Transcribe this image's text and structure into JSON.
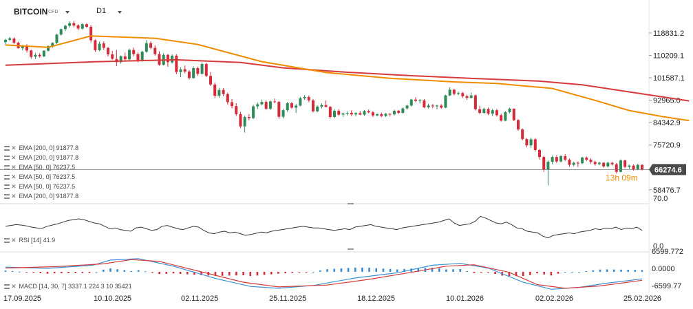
{
  "header": {
    "symbol": "BITCOIN",
    "symbol_type": "CFD",
    "timeframe": "D1"
  },
  "legends": {
    "main": [
      "EMA [200, 0] 91877.8",
      "EMA [200, 0] 91877.8",
      "EMA [50, 0] 76237.5",
      "EMA [50, 0] 76237.5",
      "EMA [50, 0] 76237.5",
      "EMA [200, 0] 91877.8"
    ],
    "rsi": "RSI [14] 41.9",
    "macd": "MACD [14, 30, 7] 3337.1 224 3 10 35421"
  },
  "colors": {
    "up": "#2e8b57",
    "down": "#d42a3a",
    "ema50": "#f08c00",
    "ema200": "#d63a3a",
    "rsi": "#333333",
    "macd": "#3a8fd4",
    "signal": "#d63a3a"
  },
  "countdown": "13h 09m",
  "chart_data": {
    "type": "candlestick",
    "price_axis": {
      "ticks": [
        118831.2,
        110209.1,
        101587.1,
        92965.0,
        84342.9,
        75720.9,
        58476.7
      ],
      "current_price": "66274.6",
      "ylim": [
        54200,
        124100
      ]
    },
    "x_axis": {
      "labels": [
        "17.09.2025",
        "10.10.2025",
        "02.11.2025",
        "25.11.2025",
        "18.12.2025",
        "10.01.2026",
        "02.02.2026",
        "25.02.2026"
      ]
    },
    "candles": [
      [
        115300,
        116600,
        114200,
        116200
      ],
      [
        116200,
        117300,
        115600,
        116800
      ],
      [
        116700,
        117200,
        114500,
        115100
      ],
      [
        115100,
        115500,
        112800,
        113000
      ],
      [
        113000,
        114200,
        112100,
        113800
      ],
      [
        113900,
        114500,
        111300,
        112100
      ],
      [
        112100,
        112400,
        108900,
        109600
      ],
      [
        109700,
        111200,
        108800,
        110400
      ],
      [
        110400,
        111100,
        109300,
        109900
      ],
      [
        109800,
        112200,
        109500,
        112000
      ],
      [
        112000,
        114000,
        111700,
        113800
      ],
      [
        113800,
        115300,
        113100,
        115000
      ],
      [
        115000,
        118500,
        114600,
        118200
      ],
      [
        118200,
        120500,
        117800,
        120300
      ],
      [
        120300,
        122000,
        119500,
        121600
      ],
      [
        121600,
        123300,
        120900,
        122600
      ],
      [
        122600,
        123500,
        121000,
        121700
      ],
      [
        121800,
        122200,
        119900,
        120500
      ],
      [
        120500,
        122500,
        120100,
        122200
      ],
      [
        122200,
        122600,
        120800,
        121200
      ],
      [
        121200,
        121800,
        115200,
        116000
      ],
      [
        116000,
        116500,
        111600,
        112200
      ],
      [
        112200,
        115500,
        111800,
        114700
      ],
      [
        114800,
        115600,
        112300,
        113100
      ],
      [
        113100,
        113400,
        109800,
        110600
      ],
      [
        110600,
        111900,
        108500,
        108900
      ],
      [
        108800,
        112300,
        106100,
        107600
      ],
      [
        107600,
        110200,
        107000,
        109900
      ],
      [
        109800,
        111300,
        108300,
        108700
      ],
      [
        108700,
        112800,
        108200,
        112300
      ],
      [
        112300,
        113200,
        109900,
        110700
      ],
      [
        110700,
        111400,
        107500,
        108200
      ],
      [
        108200,
        112000,
        107800,
        111600
      ],
      [
        111600,
        116100,
        111200,
        114900
      ],
      [
        114900,
        115600,
        112600,
        113100
      ],
      [
        113100,
        114100,
        110100,
        110700
      ],
      [
        110700,
        111800,
        106200,
        106600
      ],
      [
        106600,
        111000,
        106300,
        110400
      ],
      [
        110400,
        110800,
        105800,
        107600
      ],
      [
        107500,
        110600,
        107100,
        110100
      ],
      [
        110100,
        110700,
        103000,
        103800
      ],
      [
        103800,
        105600,
        101800,
        104800
      ],
      [
        104900,
        106300,
        103300,
        104000
      ],
      [
        104000,
        104600,
        100900,
        101500
      ],
      [
        101500,
        106000,
        101200,
        105300
      ],
      [
        105300,
        105900,
        102300,
        103100
      ],
      [
        103100,
        107600,
        102800,
        106900
      ],
      [
        106900,
        107400,
        101800,
        102300
      ],
      [
        102300,
        103800,
        98400,
        99000
      ],
      [
        99000,
        99800,
        93800,
        94700
      ],
      [
        94700,
        97700,
        93900,
        96900
      ],
      [
        96900,
        97600,
        94500,
        95300
      ],
      [
        95300,
        95900,
        91300,
        92200
      ],
      [
        92200,
        93400,
        89800,
        90700
      ],
      [
        90700,
        91800,
        86900,
        87600
      ],
      [
        87600,
        88400,
        82200,
        82900
      ],
      [
        82900,
        87100,
        80500,
        86500
      ],
      [
        86500,
        87600,
        85200,
        86100
      ],
      [
        86100,
        91200,
        85700,
        90600
      ],
      [
        90600,
        92100,
        89500,
        91400
      ],
      [
        91400,
        93200,
        91000,
        92300
      ],
      [
        92300,
        93000,
        89100,
        89700
      ],
      [
        89700,
        92800,
        89200,
        92500
      ],
      [
        92500,
        93600,
        91800,
        92300
      ],
      [
        92300,
        92700,
        85800,
        86600
      ],
      [
        86600,
        89600,
        86000,
        89100
      ],
      [
        89100,
        92300,
        88500,
        91800
      ],
      [
        91800,
        92300,
        89600,
        90100
      ],
      [
        90100,
        91500,
        88100,
        90900
      ],
      [
        90900,
        94200,
        90500,
        93700
      ],
      [
        93700,
        94900,
        93100,
        94200
      ],
      [
        94200,
        94800,
        92200,
        92900
      ],
      [
        92900,
        93400,
        88200,
        88700
      ],
      [
        88700,
        91000,
        88300,
        90500
      ],
      [
        90500,
        91800,
        89800,
        91100
      ],
      [
        91100,
        92900,
        90200,
        90400
      ],
      [
        90400,
        90800,
        85800,
        86500
      ],
      [
        86500,
        89500,
        86000,
        88900
      ],
      [
        88900,
        89500,
        86900,
        87400
      ],
      [
        87400,
        88200,
        86500,
        87900
      ],
      [
        87900,
        88600,
        87100,
        88100
      ],
      [
        88100,
        89100,
        86900,
        87500
      ],
      [
        87500,
        88400,
        86800,
        88000
      ],
      [
        88000,
        88800,
        87200,
        87400
      ],
      [
        87400,
        89200,
        87000,
        88800
      ],
      [
        88800,
        89400,
        87900,
        88300
      ],
      [
        88300,
        88800,
        86500,
        87100
      ],
      [
        87100,
        87900,
        86800,
        87600
      ],
      [
        87600,
        88200,
        86400,
        86900
      ],
      [
        86900,
        88100,
        86500,
        87700
      ],
      [
        87700,
        88000,
        86700,
        87500
      ],
      [
        87500,
        89300,
        87000,
        88900
      ],
      [
        88900,
        89200,
        87600,
        88100
      ],
      [
        88100,
        90200,
        87800,
        89800
      ],
      [
        89800,
        91300,
        89300,
        90900
      ],
      [
        90900,
        93500,
        90500,
        93200
      ],
      [
        93200,
        94100,
        92200,
        92700
      ],
      [
        92700,
        93400,
        91700,
        92900
      ],
      [
        92900,
        93400,
        89900,
        90200
      ],
      [
        90200,
        91600,
        89800,
        90900
      ],
      [
        90900,
        91500,
        89900,
        90600
      ],
      [
        90600,
        91300,
        89500,
        90900
      ],
      [
        90900,
        91500,
        89700,
        90100
      ],
      [
        90100,
        95100,
        89900,
        94800
      ],
      [
        94800,
        97900,
        94500,
        97000
      ],
      [
        97000,
        97300,
        94800,
        95400
      ],
      [
        95400,
        96300,
        94900,
        95700
      ],
      [
        95700,
        96200,
        93800,
        94500
      ],
      [
        94500,
        95100,
        93100,
        93900
      ],
      [
        93900,
        95900,
        93600,
        94800
      ],
      [
        94800,
        95200,
        89000,
        89500
      ],
      [
        89500,
        90800,
        87600,
        88100
      ],
      [
        88100,
        90100,
        87700,
        89600
      ],
      [
        89600,
        90100,
        87200,
        87800
      ],
      [
        87800,
        89600,
        86900,
        89100
      ],
      [
        89100,
        89600,
        86700,
        87200
      ],
      [
        87200,
        87800,
        84700,
        85100
      ],
      [
        85100,
        88700,
        84800,
        88400
      ],
      [
        88400,
        90100,
        87900,
        89700
      ],
      [
        89700,
        89800,
        84900,
        85300
      ],
      [
        85300,
        85700,
        81200,
        81700
      ],
      [
        81700,
        82100,
        77500,
        78000
      ],
      [
        78000,
        78400,
        74800,
        75600
      ],
      [
        75600,
        78600,
        74600,
        77900
      ],
      [
        77900,
        78400,
        73200,
        73800
      ],
      [
        73800,
        74200,
        70100,
        71100
      ],
      [
        71100,
        71600,
        65400,
        66200
      ],
      [
        66200,
        69800,
        60200,
        69300
      ],
      [
        69300,
        71600,
        68400,
        71100
      ],
      [
        71100,
        71800,
        68800,
        69400
      ],
      [
        69400,
        71900,
        69000,
        71400
      ],
      [
        71400,
        72200,
        69500,
        70100
      ],
      [
        70100,
        70500,
        67300,
        68100
      ],
      [
        68100,
        69300,
        67500,
        68900
      ],
      [
        68900,
        69400,
        67300,
        68700
      ],
      [
        68700,
        71200,
        68300,
        70900
      ],
      [
        70900,
        71300,
        69500,
        70100
      ],
      [
        70100,
        70700,
        68600,
        69200
      ],
      [
        69200,
        69700,
        67800,
        68400
      ],
      [
        68400,
        69300,
        67900,
        68900
      ],
      [
        68900,
        69100,
        67000,
        67500
      ],
      [
        67500,
        69300,
        67100,
        68900
      ],
      [
        68900,
        69200,
        67800,
        68300
      ],
      [
        68300,
        68800,
        64800,
        65400
      ],
      [
        65400,
        70200,
        65200,
        69800
      ],
      [
        69800,
        70100,
        66800,
        67300
      ],
      [
        67300,
        68200,
        66500,
        67800
      ],
      [
        67800,
        68300,
        65900,
        66400
      ],
      [
        66400,
        68600,
        66000,
        68100
      ],
      [
        68100,
        68300,
        65900,
        66300
      ]
    ],
    "ema50": [
      [
        0,
        114200
      ],
      [
        10,
        113300
      ],
      [
        20,
        117700
      ],
      [
        35,
        116800
      ],
      [
        45,
        114400
      ],
      [
        60,
        107800
      ],
      [
        75,
        103600
      ],
      [
        90,
        101400
      ],
      [
        105,
        100000
      ],
      [
        115,
        99400
      ],
      [
        128,
        97500
      ],
      [
        138,
        92900
      ],
      [
        146,
        89000
      ],
      [
        154,
        86600
      ],
      [
        160,
        85100
      ]
    ],
    "ema200": [
      [
        0,
        106400
      ],
      [
        20,
        107700
      ],
      [
        40,
        108500
      ],
      [
        55,
        107500
      ],
      [
        65,
        105400
      ],
      [
        80,
        103700
      ],
      [
        95,
        102400
      ],
      [
        110,
        101300
      ],
      [
        125,
        100300
      ],
      [
        135,
        98900
      ],
      [
        145,
        96400
      ],
      [
        160,
        92700
      ]
    ],
    "rsi": {
      "ticks": [
        "70.0",
        "0.0"
      ],
      "ylim": [
        0,
        100
      ],
      "values": [
        52,
        54,
        56,
        55,
        53,
        50,
        48,
        47,
        52,
        55,
        58,
        62,
        66,
        68,
        70,
        68,
        64,
        60,
        58,
        52,
        46,
        48,
        44,
        42,
        40,
        48,
        50,
        46,
        42,
        44,
        52,
        54,
        50,
        46,
        44,
        48,
        52,
        50,
        42,
        36,
        34,
        38,
        40,
        36,
        38,
        34,
        30,
        32,
        35,
        38,
        36,
        40,
        42,
        44,
        46,
        48,
        50,
        52,
        50,
        48,
        48,
        46,
        44,
        42,
        44,
        46,
        44,
        50,
        52,
        54,
        56,
        52,
        50,
        48,
        46,
        44,
        48,
        50,
        52,
        54,
        56,
        58,
        60,
        62,
        66,
        70,
        60,
        54,
        56,
        58,
        64,
        76,
        72,
        66,
        60,
        58,
        62,
        56,
        48,
        46,
        40,
        38,
        36,
        28,
        24,
        30,
        32,
        34,
        36,
        34,
        38,
        40,
        42,
        46,
        44,
        48,
        46,
        50,
        44,
        48,
        46,
        50,
        42
      ]
    },
    "macd": {
      "ticks": [
        "6599.772",
        "0.0000",
        "-6599.77"
      ],
      "ylim": [
        -7600,
        7600
      ],
      "macd": [
        [
          0,
          2000
        ],
        [
          12,
          1500
        ],
        [
          25,
          2800
        ],
        [
          30,
          5000
        ],
        [
          38,
          5600
        ],
        [
          48,
          2400
        ],
        [
          60,
          -2800
        ],
        [
          70,
          -6200
        ],
        [
          78,
          -7000
        ],
        [
          88,
          -5800
        ],
        [
          100,
          -2600
        ],
        [
          112,
          -400
        ],
        [
          122,
          2800
        ],
        [
          130,
          3600
        ],
        [
          138,
          1600
        ],
        [
          148,
          -4400
        ],
        [
          156,
          -7400
        ],
        [
          164,
          -6600
        ],
        [
          172,
          -4800
        ],
        [
          182,
          -3000
        ]
      ],
      "signal": [
        [
          0,
          1600
        ],
        [
          14,
          2200
        ],
        [
          28,
          3400
        ],
        [
          36,
          5200
        ],
        [
          44,
          4400
        ],
        [
          56,
          0
        ],
        [
          68,
          -4400
        ],
        [
          78,
          -6400
        ],
        [
          92,
          -5600
        ],
        [
          104,
          -3200
        ],
        [
          116,
          -200
        ],
        [
          126,
          2400
        ],
        [
          134,
          3000
        ],
        [
          144,
          -200
        ],
        [
          152,
          -5400
        ],
        [
          160,
          -7000
        ],
        [
          170,
          -6000
        ],
        [
          182,
          -3600
        ]
      ]
    }
  }
}
